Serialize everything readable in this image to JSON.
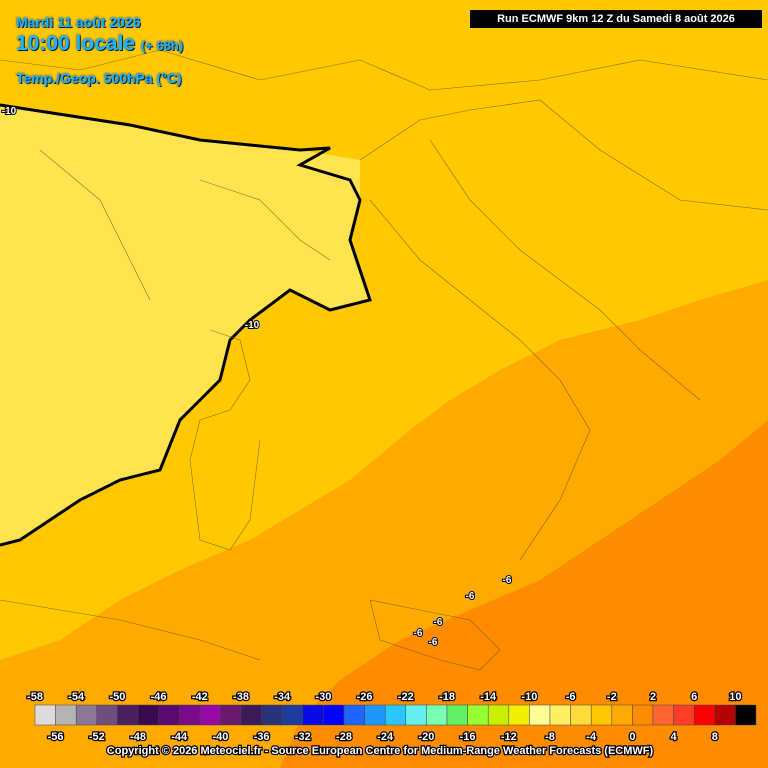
{
  "header": {
    "date": "Mardi 11 août 2026",
    "time": "10:00 locale",
    "lead": "(+ 68h)",
    "field": "Temp./Geop. 500hPa (°C)",
    "run": "Run ECMWF 9km 12 Z du Samedi 8 août 2026"
  },
  "contour_labels": [
    "-10",
    "-10",
    "-6",
    "-6",
    "-6",
    "-6",
    "-6"
  ],
  "legend": {
    "top_labels": [
      -58,
      -54,
      -50,
      -46,
      -42,
      -38,
      -34,
      -30,
      -26,
      -22,
      -18,
      -14,
      -10,
      -6,
      -2,
      2,
      6,
      10
    ],
    "bottom_labels": [
      -56,
      -52,
      -48,
      -44,
      -40,
      -36,
      -32,
      -28,
      -24,
      -20,
      -16,
      -12,
      -8,
      -4,
      0,
      4,
      8
    ],
    "colors": [
      "#dcdcdc",
      "#b4b4b4",
      "#8c7896",
      "#6e4e7e",
      "#4b2060",
      "#3a0a50",
      "#5a0a6e",
      "#7a0a8a",
      "#960aa8",
      "#6a1a6a",
      "#3c1a5a",
      "#283278",
      "#1e3ca0",
      "#0a0ae6",
      "#0000ff",
      "#1e64ff",
      "#1e96ff",
      "#28c8ff",
      "#64f0f0",
      "#78ffb4",
      "#64f064",
      "#96ff32",
      "#c8f000",
      "#f0f000",
      "#ffff9a",
      "#fff064",
      "#ffdc3c",
      "#ffc800",
      "#ffaa00",
      "#ff8c00",
      "#ff6432",
      "#ff3c28",
      "#ff0000",
      "#b40000",
      "#000000"
    ]
  },
  "footer": "Copyright © 2026 Meteociel.fr - Source European Centre for Medium-Range Weather Forecasts (ECMWF)"
}
